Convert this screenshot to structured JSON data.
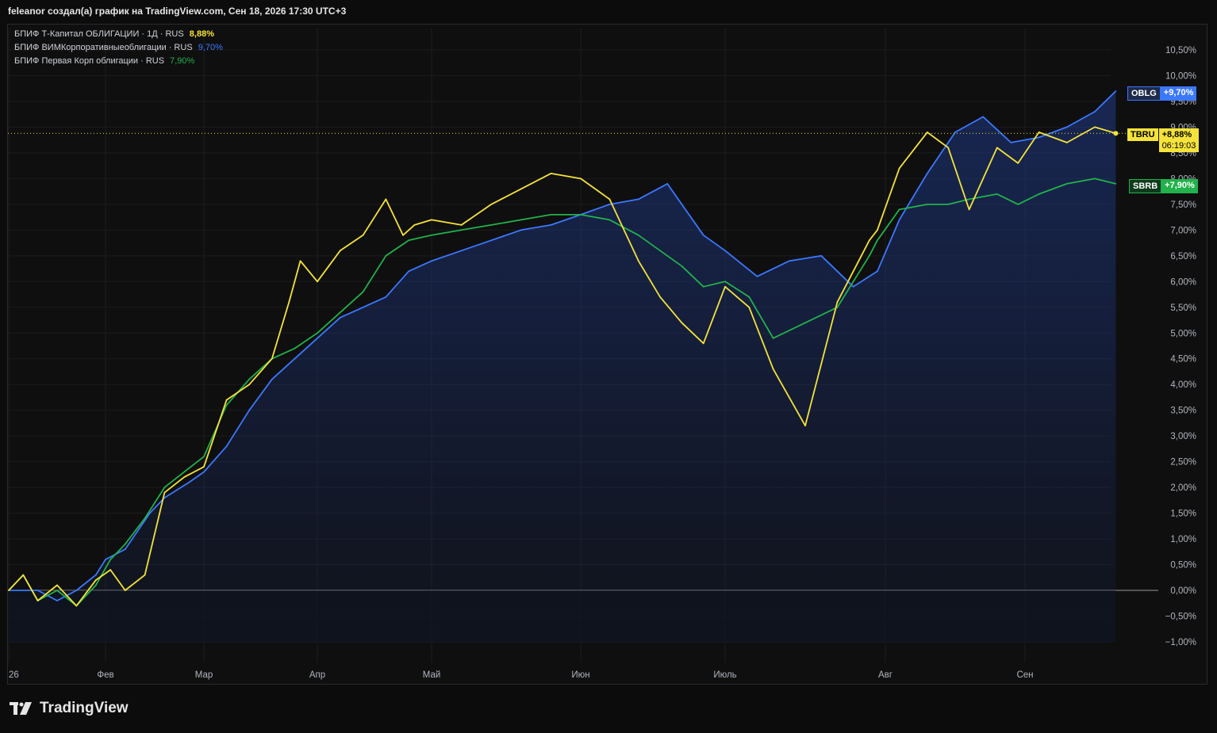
{
  "header": {
    "caption": "feleanor создал(а) график на TradingView.com, Сен 18, 2026 17:30 UTC+3"
  },
  "legend": [
    {
      "name": "БПИФ Т-Капитал ОБЛИГАЦИИ · 1Д · RUS",
      "value": "8,88%",
      "color": "#f5e33b"
    },
    {
      "name": "БПИФ ВИМКорпоративныеоблигации · RUS",
      "value": "9,70%",
      "color": "#3c78ff"
    },
    {
      "name": "БПИФ Первая Корп облигации · RUS",
      "value": "7,90%",
      "color": "#22b14c"
    }
  ],
  "tags": {
    "oblg": {
      "ticker": "OBLG",
      "value": "+9,70%"
    },
    "tbru": {
      "ticker": "TBRU",
      "value": "+8,88%",
      "timer": "06:19:03"
    },
    "sbrb": {
      "ticker": "SBRB",
      "value": "+7,90%"
    }
  },
  "footer": {
    "brand": "TradingView"
  },
  "colors": {
    "background": "#0f0f0f",
    "tbru": "#f5e33b",
    "oblg": "#3c78ff",
    "sbrb": "#22b14c"
  },
  "chart_data": {
    "type": "line",
    "x_tick_labels": [
      "26",
      "Фев",
      "Мар",
      "Апр",
      "Май",
      "Июн",
      "Июль",
      "Авг",
      "Сен"
    ],
    "y_tick_labels": [
      "10,50%",
      "10,00%",
      "9,50%",
      "9,00%",
      "8,50%",
      "8,00%",
      "7,50%",
      "7,00%",
      "6,50%",
      "6,00%",
      "5,50%",
      "5,00%",
      "4,50%",
      "4,00%",
      "3,50%",
      "3,00%",
      "2,50%",
      "2,00%",
      "1,50%",
      "1,00%",
      "0,50%",
      "0,00%",
      "−0,50%",
      "−1,00%"
    ],
    "ylim": [
      -1.0,
      10.5
    ],
    "x_months": [
      0,
      1,
      2,
      3,
      4,
      5,
      6,
      7,
      8
    ],
    "series": [
      {
        "name": "БПИФ ВИМКорпоративныеоблигации",
        "ticker": "OBLG",
        "color": "#3c78ff",
        "x": [
          0,
          0.3,
          0.5,
          0.7,
          0.9,
          1.0,
          1.2,
          1.45,
          1.6,
          1.85,
          2.0,
          2.2,
          2.4,
          2.6,
          2.8,
          3.0,
          3.2,
          3.4,
          3.6,
          3.8,
          4.0,
          4.2,
          4.4,
          4.6,
          4.8,
          5.0,
          5.2,
          5.4,
          5.6,
          5.75,
          5.85,
          6.0,
          6.2,
          6.4,
          6.6,
          6.8,
          6.95,
          7.1,
          7.3,
          7.4,
          7.5,
          7.7,
          7.9,
          8.1,
          8.3,
          8.5,
          8.65
        ],
        "y": [
          0.0,
          0.0,
          -0.2,
          0.0,
          0.3,
          0.6,
          0.8,
          1.5,
          1.8,
          2.1,
          2.3,
          2.8,
          3.5,
          4.1,
          4.5,
          4.9,
          5.3,
          5.5,
          5.7,
          6.2,
          6.4,
          6.6,
          6.8,
          7.0,
          7.1,
          7.3,
          7.5,
          7.6,
          7.9,
          7.3,
          6.9,
          6.6,
          6.1,
          6.4,
          6.5,
          5.9,
          6.2,
          7.2,
          8.1,
          8.5,
          8.9,
          9.2,
          8.7,
          8.8,
          9.0,
          9.3,
          9.7
        ]
      },
      {
        "name": "БПИФ Т-Капитал ОБЛИГАЦИИ",
        "ticker": "TBRU",
        "color": "#f5e33b",
        "x": [
          0,
          0.15,
          0.3,
          0.5,
          0.7,
          0.9,
          1.05,
          1.2,
          1.4,
          1.6,
          1.8,
          2.0,
          2.2,
          2.4,
          2.6,
          2.75,
          2.85,
          3.0,
          3.2,
          3.4,
          3.6,
          3.75,
          3.85,
          4.0,
          4.2,
          4.4,
          4.6,
          4.8,
          5.0,
          5.2,
          5.4,
          5.55,
          5.7,
          5.85,
          6.0,
          6.15,
          6.3,
          6.5,
          6.7,
          6.9,
          6.95,
          7.1,
          7.3,
          7.45,
          7.6,
          7.8,
          7.95,
          8.1,
          8.3,
          8.5,
          8.65
        ],
        "y": [
          0.0,
          0.3,
          -0.2,
          0.1,
          -0.3,
          0.2,
          0.4,
          0.0,
          0.3,
          1.9,
          2.2,
          2.4,
          3.7,
          4.0,
          4.5,
          5.6,
          6.4,
          6.0,
          6.6,
          6.9,
          7.6,
          6.9,
          7.1,
          7.2,
          7.1,
          7.5,
          7.8,
          8.1,
          8.0,
          7.6,
          6.4,
          5.7,
          5.2,
          4.8,
          5.9,
          5.5,
          4.3,
          3.2,
          5.6,
          6.8,
          7.0,
          8.2,
          8.9,
          8.6,
          7.4,
          8.6,
          8.3,
          8.9,
          8.7,
          9.0,
          8.88
        ]
      },
      {
        "name": "БПИФ Первая Корп облигации",
        "ticker": "SBRB",
        "color": "#22b14c",
        "x": [
          0,
          0.15,
          0.3,
          0.5,
          0.7,
          0.9,
          1.05,
          1.2,
          1.4,
          1.6,
          1.8,
          2.0,
          2.2,
          2.4,
          2.6,
          2.8,
          3.0,
          3.2,
          3.4,
          3.6,
          3.8,
          4.0,
          4.2,
          4.4,
          4.6,
          4.8,
          5.0,
          5.2,
          5.4,
          5.55,
          5.7,
          5.85,
          6.0,
          6.15,
          6.3,
          6.5,
          6.7,
          6.9,
          6.95,
          7.1,
          7.3,
          7.45,
          7.6,
          7.8,
          7.95,
          8.1,
          8.3,
          8.5,
          8.65
        ],
        "y": [
          0.0,
          0.3,
          -0.2,
          0.0,
          -0.3,
          0.1,
          0.6,
          0.9,
          1.4,
          2.0,
          2.3,
          2.6,
          3.6,
          4.1,
          4.5,
          4.7,
          5.0,
          5.4,
          5.8,
          6.5,
          6.8,
          6.9,
          7.0,
          7.1,
          7.2,
          7.3,
          7.3,
          7.2,
          6.9,
          6.6,
          6.3,
          5.9,
          6.0,
          5.7,
          4.9,
          5.2,
          5.5,
          6.5,
          6.8,
          7.4,
          7.5,
          7.5,
          7.6,
          7.7,
          7.5,
          7.7,
          7.9,
          8.0,
          7.9
        ]
      }
    ]
  }
}
